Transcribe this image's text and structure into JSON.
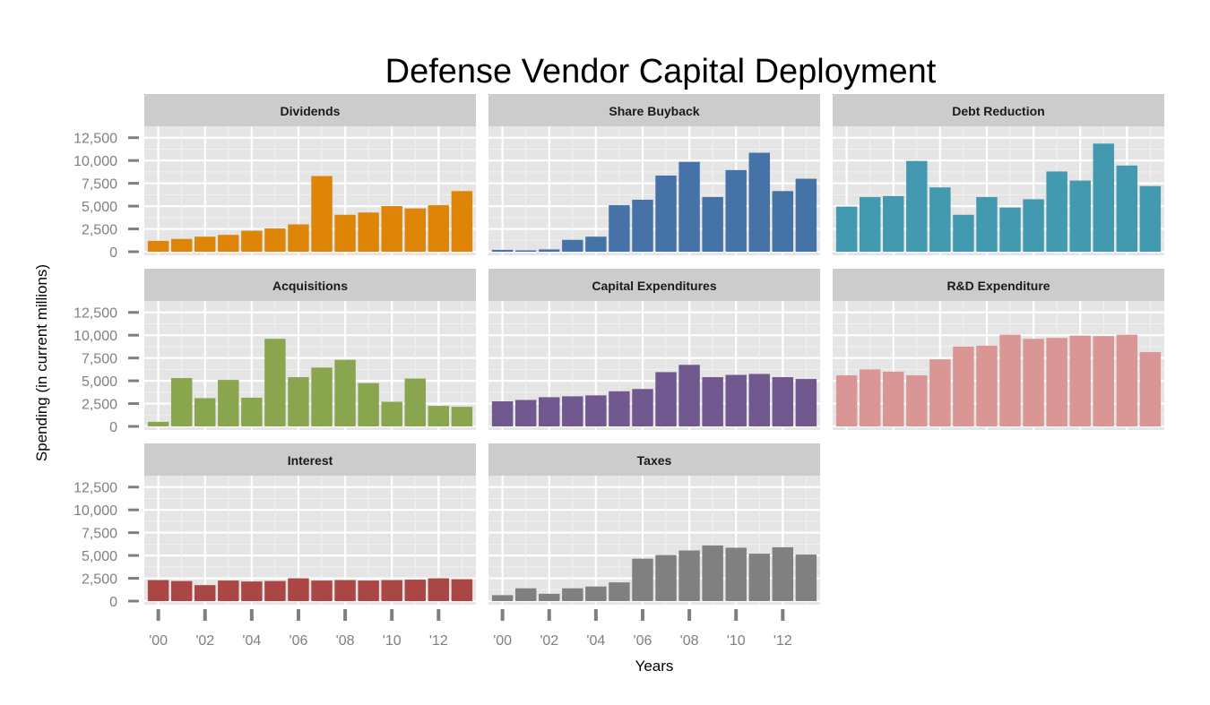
{
  "chart_data": {
    "type": "bar",
    "title": "Defense Vendor Capital Deployment",
    "xlabel": "Years",
    "ylabel": "Spending (in current millions)",
    "ylim": [
      0,
      12500
    ],
    "yticks": [
      0,
      2500,
      5000,
      7500,
      10000,
      12500
    ],
    "ytick_labels": [
      "0",
      "2,500",
      "5,000",
      "7,500",
      "10,000",
      "12,500"
    ],
    "x": [
      2000,
      2001,
      2002,
      2003,
      2004,
      2005,
      2006,
      2007,
      2008,
      2009,
      2010,
      2011,
      2012,
      2013
    ],
    "xtick_labels": [
      "'00",
      "'02",
      "'04",
      "'06",
      "'08",
      "'10",
      "'12"
    ],
    "grid": true,
    "facets": [
      {
        "name": "Dividends",
        "color": "#DE8507",
        "values": [
          1200,
          1400,
          1650,
          1850,
          2300,
          2550,
          3000,
          8300,
          4050,
          4300,
          5000,
          4750,
          5100,
          6650
        ]
      },
      {
        "name": "Share Buyback",
        "color": "#4573A7",
        "values": [
          200,
          150,
          250,
          1300,
          1650,
          5100,
          5700,
          8350,
          9850,
          6000,
          8950,
          10850,
          6650,
          8000
        ]
      },
      {
        "name": "Debt Reduction",
        "color": "#4299B0",
        "values": [
          4950,
          6000,
          6100,
          9950,
          7050,
          4050,
          6000,
          4850,
          5750,
          8800,
          7800,
          11850,
          9450,
          7200
        ]
      },
      {
        "name": "Acquisitions",
        "color": "#89A54E",
        "values": [
          500,
          5300,
          3100,
          5100,
          3150,
          9600,
          5400,
          6450,
          7300,
          4750,
          2700,
          5250,
          2250,
          2150
        ]
      },
      {
        "name": "Capital Expenditures",
        "color": "#71588F",
        "values": [
          2750,
          2900,
          3200,
          3300,
          3400,
          3850,
          4100,
          5950,
          6750,
          5400,
          5650,
          5750,
          5400,
          5200
        ]
      },
      {
        "name": "R&D Expenditure",
        "color": "#D99694",
        "values": [
          5600,
          6250,
          6000,
          5600,
          7350,
          8750,
          8850,
          10050,
          9600,
          9700,
          9950,
          9900,
          10050,
          8150
        ]
      },
      {
        "name": "Interest",
        "color": "#AA4643",
        "values": [
          2300,
          2200,
          1750,
          2250,
          2150,
          2200,
          2500,
          2250,
          2300,
          2250,
          2300,
          2350,
          2500,
          2400
        ]
      },
      {
        "name": "Taxes",
        "color": "#808080",
        "values": [
          650,
          1400,
          800,
          1400,
          1600,
          2050,
          4650,
          5050,
          5550,
          6100,
          5850,
          5200,
          5900,
          5100
        ]
      }
    ]
  }
}
